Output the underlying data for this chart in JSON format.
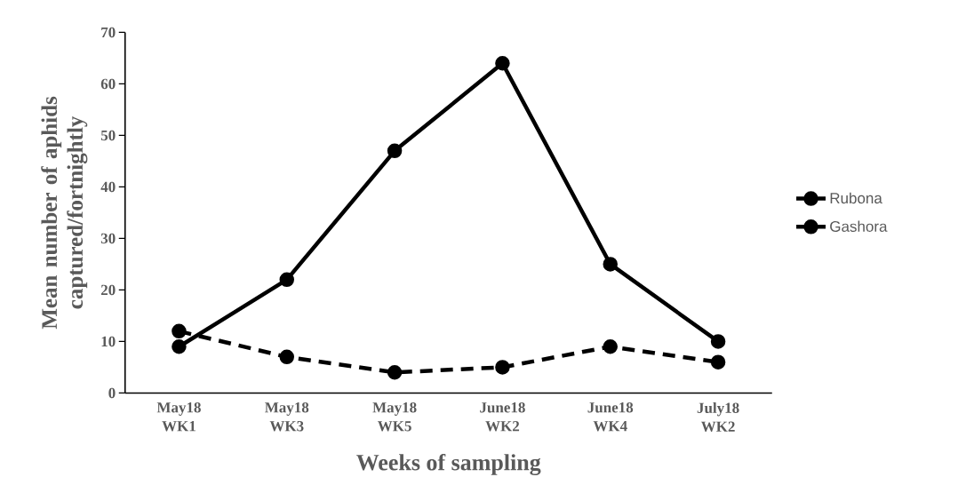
{
  "chart_data": {
    "type": "line",
    "xlabel": "Weeks of sampling",
    "ylabel": "Mean number of aphids captured/fortnightly",
    "categories": [
      "May18 WK1",
      "May18 WK3",
      "May18 WK5",
      "June18 WK2",
      "June18 WK4",
      "July18 WK2"
    ],
    "series": [
      {
        "name": "Rubona",
        "color": "#000000",
        "line_style": "solid",
        "values": [
          9,
          22,
          47,
          64,
          25,
          10
        ]
      },
      {
        "name": "Gashora",
        "color": "#000000",
        "line_style": "dashed",
        "values": [
          12,
          7,
          4,
          5,
          9,
          6
        ]
      }
    ],
    "ylim": [
      0,
      70
    ],
    "yticks": [
      0,
      10,
      20,
      30,
      40,
      50,
      60,
      70
    ],
    "marker": "circle",
    "legend": "right",
    "grid": false
  }
}
